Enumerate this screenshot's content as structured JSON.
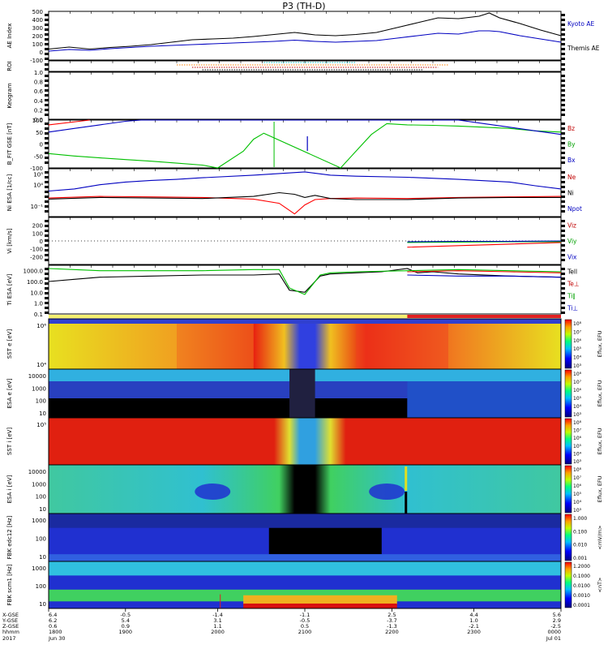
{
  "title": "P3 (TH-D)",
  "chart_data": [
    {
      "type": "line",
      "ylabel": "AE Index",
      "ylim": [
        -100,
        500
      ],
      "yticks": [
        500,
        400,
        300,
        200,
        100,
        0,
        -100
      ],
      "x": [
        0,
        0.04,
        0.08,
        0.12,
        0.16,
        0.2,
        0.24,
        0.28,
        0.32,
        0.36,
        0.4,
        0.44,
        0.48,
        0.52,
        0.56,
        0.6,
        0.64,
        0.68,
        0.72,
        0.76,
        0.8,
        0.84,
        0.86,
        0.88,
        0.92,
        0.96,
        1.0
      ],
      "series": [
        {
          "name": "Kyoto AE",
          "color": "#000000",
          "values": [
            35,
            60,
            35,
            55,
            70,
            90,
            120,
            150,
            160,
            170,
            190,
            215,
            240,
            210,
            200,
            215,
            240,
            300,
            360,
            420,
            410,
            440,
            480,
            420,
            350,
            270,
            200
          ]
        },
        {
          "name": "Themis AE",
          "color": "#0000c0",
          "values": [
            10,
            30,
            20,
            40,
            55,
            70,
            80,
            90,
            100,
            110,
            120,
            130,
            145,
            130,
            120,
            130,
            140,
            170,
            200,
            230,
            220,
            260,
            260,
            250,
            200,
            160,
            120
          ]
        }
      ],
      "annotations": [
        {
          "series": "Themis AE",
          "x": 0.7,
          "y": -60,
          "text": ""
        }
      ]
    },
    {
      "type": "bar",
      "ylabel": "ROI",
      "series": [
        {
          "name": "roi-cyan",
          "color": "#00c0c0",
          "start": 0.42,
          "end": 0.6
        },
        {
          "name": "roi-orange",
          "color": "#ff8000",
          "start": 0.25,
          "end": 0.78
        },
        {
          "name": "roi-red",
          "color": "#c00000",
          "start": 0.28,
          "end": 0.76
        },
        {
          "name": "roi-black",
          "color": "#000000",
          "start": 0.3,
          "end": 0.73
        }
      ]
    },
    {
      "type": "line",
      "ylabel": "Keogram",
      "ylim": [
        0,
        1
      ],
      "yticks": [
        1.0,
        0.8,
        0.6,
        0.4,
        0.2,
        0.0
      ]
    },
    {
      "type": "line",
      "ylabel": "B_FIT GSE [nT]",
      "ylim": [
        -100,
        100
      ],
      "yticks": [
        100,
        50,
        0,
        -50,
        -100
      ],
      "series": [
        {
          "name": "Bz",
          "color": "#ff0000",
          "x": [
            0,
            0.08
          ],
          "values": [
            80,
            100
          ]
        },
        {
          "name": "By",
          "color": "#00c000",
          "x": [
            0,
            0.05,
            0.1,
            0.15,
            0.2,
            0.25,
            0.3,
            0.33,
            0.38,
            0.4,
            0.42,
            0.57,
            0.6,
            0.63,
            0.66,
            0.7,
            0.75,
            0.8,
            0.85,
            0.9,
            0.95,
            1.0
          ],
          "values": [
            -40,
            -50,
            -58,
            -65,
            -72,
            -80,
            -88,
            -100,
            -30,
            20,
            45,
            -100,
            -30,
            40,
            85,
            80,
            78,
            75,
            70,
            65,
            55,
            50
          ]
        },
        {
          "name": "Bx",
          "color": "#0000c0",
          "x": [
            0,
            0.05,
            0.1,
            0.15,
            0.18,
            0.8,
            0.85,
            0.9,
            0.95,
            1.0
          ],
          "values": [
            50,
            65,
            80,
            95,
            100,
            100,
            85,
            70,
            55,
            40
          ]
        }
      ]
    },
    {
      "type": "line",
      "ylabel": "Ni ESA [1/cc]",
      "ylim": [
        -3,
        6
      ],
      "ytick_labels": [
        "10^5",
        "10^4",
        "10^-1"
      ],
      "series": [
        {
          "name": "Ne",
          "color": "#ff0000",
          "x": [
            0,
            0.1,
            0.2,
            0.3,
            0.4,
            0.45,
            0.48,
            0.5,
            0.52,
            0.55,
            0.6,
            0.7,
            0.8,
            0.9,
            1.0
          ],
          "values": [
            0.5,
            0.8,
            0.7,
            0.6,
            0.3,
            -0.5,
            -2.5,
            -0.8,
            0.2,
            0.4,
            0.5,
            0.4,
            0.6,
            0.7,
            0.8
          ]
        },
        {
          "name": "Ni",
          "color": "#000000",
          "x": [
            0,
            0.1,
            0.2,
            0.3,
            0.4,
            0.45,
            0.48,
            0.5,
            0.52,
            0.55,
            0.6,
            0.7,
            0.8,
            0.9,
            1.0
          ],
          "values": [
            0.3,
            0.6,
            0.5,
            0.4,
            0.8,
            1.5,
            1.2,
            0.6,
            1.0,
            0.4,
            0.2,
            0.2,
            0.5,
            0.6,
            0.6
          ]
        },
        {
          "name": "Npot",
          "color": "#0000c0",
          "x": [
            0,
            0.05,
            0.1,
            0.15,
            0.2,
            0.25,
            0.3,
            0.4,
            0.5,
            0.55,
            0.6,
            0.7,
            0.8,
            0.9,
            0.95,
            1.0
          ],
          "values": [
            1.8,
            2.2,
            3.0,
            3.5,
            3.8,
            4.0,
            4.3,
            4.8,
            5.4,
            4.8,
            4.6,
            4.4,
            4.0,
            3.5,
            2.8,
            2.2
          ]
        }
      ]
    },
    {
      "type": "line",
      "ylabel": "Vi [km/s]",
      "ylim": [
        -300,
        300
      ],
      "yticks": [
        200,
        100,
        0,
        -100,
        -200
      ],
      "series": [
        {
          "name": "Viz",
          "color": "#ff0000",
          "x": [
            0.7,
            0.8,
            0.9,
            1.0
          ],
          "values": [
            -80,
            -60,
            -40,
            -20
          ]
        },
        {
          "name": "Viy",
          "color": "#00c000",
          "x": [
            0.7,
            0.8,
            0.9,
            1.0
          ],
          "values": [
            -20,
            -15,
            -10,
            -10
          ]
        },
        {
          "name": "Vix",
          "color": "#0000c0",
          "x": [
            0.7,
            0.8,
            0.9,
            1.0
          ],
          "values": [
            -10,
            -5,
            -5,
            0
          ]
        }
      ]
    },
    {
      "type": "line",
      "ylabel": "Ti ESA [eV]",
      "ylim": [
        -1,
        3.5
      ],
      "yticks_log": [
        "1000.0",
        "100.0",
        "10.0",
        "1.0",
        "0.1"
      ],
      "series": [
        {
          "name": "Tell",
          "color": "#000000",
          "x": [
            0,
            0.05,
            0.1,
            0.2,
            0.3,
            0.4,
            0.45,
            0.47,
            0.5,
            0.53,
            0.55,
            0.6,
            0.65,
            0.7,
            0.72,
            0.75,
            0.8,
            0.9,
            1.0
          ],
          "values": [
            2.0,
            2.2,
            2.4,
            2.5,
            2.6,
            2.6,
            2.7,
            1.2,
            1.0,
            2.5,
            2.7,
            2.8,
            2.9,
            3.2,
            2.8,
            2.9,
            2.7,
            2.5,
            2.4
          ]
        },
        {
          "name": "Te⊥",
          "color": "#ff0000",
          "x": [
            0.7,
            0.8,
            0.9,
            1.0
          ],
          "values": [
            2.9,
            3.0,
            2.9,
            2.8
          ]
        },
        {
          "name": "Ti∥",
          "color": "#00c000",
          "x": [
            0,
            0.05,
            0.1,
            0.2,
            0.3,
            0.4,
            0.45,
            0.47,
            0.5,
            0.53,
            0.55,
            0.6,
            0.7,
            0.8,
            0.9,
            1.0
          ],
          "values": [
            3.2,
            3.1,
            3.0,
            3.0,
            3.0,
            3.1,
            3.1,
            1.4,
            0.8,
            2.6,
            2.8,
            2.9,
            3.0,
            3.1,
            3.0,
            2.9
          ]
        },
        {
          "name": "Ti⊥",
          "color": "#0000c0",
          "x": [
            0.7,
            0.8,
            0.9,
            1.0
          ],
          "values": [
            2.6,
            2.5,
            2.5,
            2.4
          ]
        }
      ]
    },
    {
      "type": "heatmap",
      "ylabel": "SST e [eV]",
      "ytick_labels": [
        "10^6",
        "10^4"
      ],
      "colorbar": "Eflux, EFU",
      "colorbar_ticks": [
        "10^8",
        "10^7",
        "10^6",
        "10^5",
        "10^4",
        "10^3"
      ]
    },
    {
      "type": "heatmap",
      "ylabel": "ESA e [eV]",
      "yticks": [
        "10000",
        "1000",
        "100",
        "10"
      ],
      "colorbar": "Eflux, EFU",
      "colorbar_ticks": [
        "10^8",
        "10^7",
        "10^6",
        "10^5",
        "10^4",
        "10^3"
      ]
    },
    {
      "type": "heatmap",
      "ylabel": "SST i [eV]",
      "ytick_labels": [
        "10^5"
      ],
      "colorbar": "Eflux, EFU",
      "colorbar_ticks": [
        "10^8",
        "10^7",
        "10^6",
        "10^5",
        "10^4",
        "10^3"
      ]
    },
    {
      "type": "heatmap",
      "ylabel": "ESA i [eV]",
      "yticks": [
        "10000",
        "1000",
        "100",
        "10"
      ],
      "colorbar": "Eflux, EFU",
      "colorbar_ticks": [
        "10^8",
        "10^7",
        "10^6",
        "10^5",
        "10^4",
        "10^3"
      ]
    },
    {
      "type": "heatmap",
      "ylabel": "FBK edc12 [Hz]",
      "yticks": [
        "1000",
        "100",
        "10"
      ],
      "colorbar": "<mV/m>",
      "colorbar_ticks": [
        "1.000",
        "0.100",
        "0.010",
        "0.001"
      ]
    },
    {
      "type": "heatmap",
      "ylabel": "FBK scm1 [Hz]",
      "yticks": [
        "1000",
        "100",
        "10"
      ],
      "colorbar": "<nT>",
      "colorbar_ticks": [
        "1.2000",
        "0.1000",
        "0.0100",
        "0.0010",
        "0.0001"
      ]
    }
  ],
  "right_labels": {
    "ae": [
      "Kyoto AE",
      "Themis AE"
    ],
    "bfit": [
      "Bz",
      "By",
      "Bx"
    ],
    "ni": [
      "Ne",
      "Ni",
      "Npot"
    ],
    "vi": [
      "Viz",
      "Viy",
      "Vix"
    ],
    "ti": [
      "Tell",
      "Te⊥",
      "Ti∥",
      "Ti⊥"
    ]
  },
  "time_axis": {
    "row_labels": [
      "X-GSE",
      "Y-GSE",
      "Z-GSE",
      "hhmm",
      "2017"
    ],
    "columns": [
      {
        "x": 0.0,
        "values": [
          "6.4",
          "6.2",
          "0.6",
          "1800",
          "Jun 30"
        ]
      },
      {
        "x": 0.15,
        "values": [
          "-0.5",
          "5.4",
          "0.9",
          "1900",
          ""
        ]
      },
      {
        "x": 0.33,
        "values": [
          "-1.4",
          "3.1",
          "1.1",
          "2000",
          ""
        ]
      },
      {
        "x": 0.5,
        "values": [
          "-1.1",
          "-0.5",
          "0.5",
          "2100",
          ""
        ]
      },
      {
        "x": 0.67,
        "values": [
          "2.5",
          "-3.7",
          "-1.3",
          "2200",
          ""
        ]
      },
      {
        "x": 0.83,
        "values": [
          "4.4",
          "1.0",
          "-2.1",
          "2300",
          ""
        ]
      },
      {
        "x": 1.0,
        "values": [
          "5.6",
          "2.9",
          "-2.5",
          "0000",
          "Jul 01"
        ]
      }
    ]
  },
  "colors": {
    "spectrogram_red": "#d81010",
    "spectrogram_yellow": "#f0e020",
    "spectrogram_green": "#40d040",
    "spectrogram_cyan": "#30c0e0",
    "spectrogram_blue": "#2030d0",
    "spectrogram_black": "#000000",
    "mode_bar_yellow": "#f4f070",
    "mode_bar_red": "#e02020"
  }
}
